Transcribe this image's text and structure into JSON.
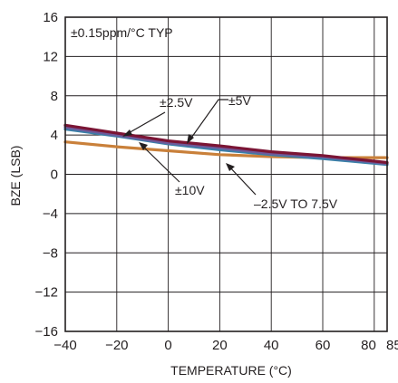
{
  "chart_data": {
    "type": "line",
    "xlabel": "TEMPERATURE (°C)",
    "ylabel": "BZE (LSB)",
    "xlim": [
      -40,
      85
    ],
    "ylim": [
      -16,
      16
    ],
    "x_ticks": [
      -40,
      -20,
      0,
      20,
      40,
      60,
      80,
      85
    ],
    "y_ticks": [
      -16,
      -12,
      -8,
      -4,
      0,
      4,
      8,
      12,
      16
    ],
    "grid": true,
    "annotations": [
      {
        "text": "±0.15ppm/°C TYP"
      },
      {
        "text": "±2.5V",
        "points_to": 0
      },
      {
        "text": "±5V",
        "points_to": 1
      },
      {
        "text": "±10V",
        "points_to": 2
      },
      {
        "text": "–2.5V TO 7.5V",
        "points_to": 3
      }
    ],
    "series": [
      {
        "color": "#7b1535",
        "x": [
          -40,
          -20,
          0,
          20,
          40,
          60,
          85
        ],
        "y": [
          5.0,
          4.2,
          3.4,
          2.9,
          2.3,
          1.9,
          1.2
        ]
      },
      {
        "color": "#6e5a9a",
        "x": [
          -40,
          -20,
          0,
          20,
          40,
          60,
          85
        ],
        "y": [
          4.8,
          4.0,
          3.2,
          2.7,
          2.1,
          1.8,
          1.1
        ]
      },
      {
        "color": "#3a7fa8",
        "x": [
          -40,
          -20,
          0,
          20,
          40,
          60,
          85
        ],
        "y": [
          4.6,
          3.9,
          3.1,
          2.5,
          2.0,
          1.6,
          1.0
        ]
      },
      {
        "color": "#c9803a",
        "x": [
          -40,
          -20,
          0,
          20,
          40,
          60,
          85
        ],
        "y": [
          3.3,
          2.8,
          2.4,
          2.0,
          1.8,
          1.7,
          1.7
        ]
      }
    ]
  }
}
